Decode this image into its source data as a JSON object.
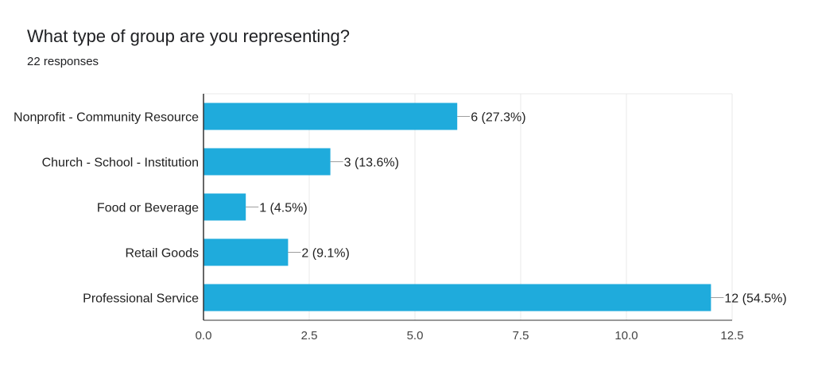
{
  "header": {
    "title": "What type of group are you representing?",
    "subtitle": "22 responses"
  },
  "colors": {
    "bar": "#1fabdc",
    "grid": "#e8e8e8",
    "axis": "#333333",
    "leader": "#9e9e9e"
  },
  "chart_data": {
    "type": "bar",
    "orientation": "horizontal",
    "categories": [
      "Nonprofit - Community Resource",
      "Church - School - Institution",
      "Food or Beverage",
      "Retail Goods",
      "Professional Service"
    ],
    "values": [
      6,
      3,
      1,
      2,
      12
    ],
    "data_labels": [
      "6 (27.3%)",
      "3 (13.6%)",
      "1 (4.5%)",
      "2 (9.1%)",
      "12 (54.5%)"
    ],
    "xlim": [
      0,
      12.5
    ],
    "x_ticks": [
      0,
      2.5,
      5,
      7.5,
      10,
      12.5
    ],
    "x_tick_labels": [
      "0.0",
      "2.5",
      "5.0",
      "7.5",
      "10.0",
      "12.5"
    ],
    "title": "What type of group are you representing?",
    "subtitle": "22 responses",
    "xlabel": "",
    "ylabel": "",
    "grid": true,
    "legend": "none"
  }
}
